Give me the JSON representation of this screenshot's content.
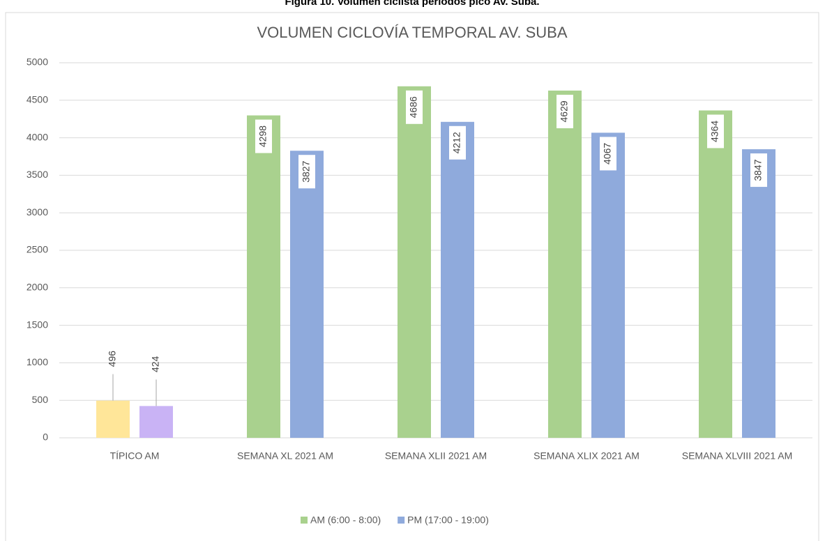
{
  "caption": "Figura 10. Volumen ciclista periodos pico Av. Suba.",
  "chart_data": {
    "type": "bar",
    "title": "VOLUMEN CICLOVÍA  TEMPORAL AV. SUBA",
    "categories": [
      "TÍPICO AM",
      "SEMANA XL 2021 AM",
      "SEMANA XLII 2021 AM",
      "SEMANA XLIX 2021 AM",
      "SEMANA XLVIII 2021 AM"
    ],
    "series": [
      {
        "name": "AM (6:00 - 8:00)",
        "color": "#a9d18e",
        "colors": [
          "#ffe699",
          "#a9d18e",
          "#a9d18e",
          "#a9d18e",
          "#a9d18e"
        ],
        "values": [
          496,
          4298,
          4686,
          4629,
          4364
        ]
      },
      {
        "name": "PM (17:00 - 19:00)",
        "color": "#8faadc",
        "colors": [
          "#c9b3f5",
          "#8faadc",
          "#8faadc",
          "#8faadc",
          "#8faadc"
        ],
        "values": [
          424,
          3827,
          4212,
          4067,
          3847
        ]
      }
    ],
    "ylim": [
      0,
      5000
    ],
    "yticks": [
      0,
      500,
      1000,
      1500,
      2000,
      2500,
      3000,
      3500,
      4000,
      4500,
      5000
    ],
    "grid": true,
    "legend": "bottom"
  }
}
